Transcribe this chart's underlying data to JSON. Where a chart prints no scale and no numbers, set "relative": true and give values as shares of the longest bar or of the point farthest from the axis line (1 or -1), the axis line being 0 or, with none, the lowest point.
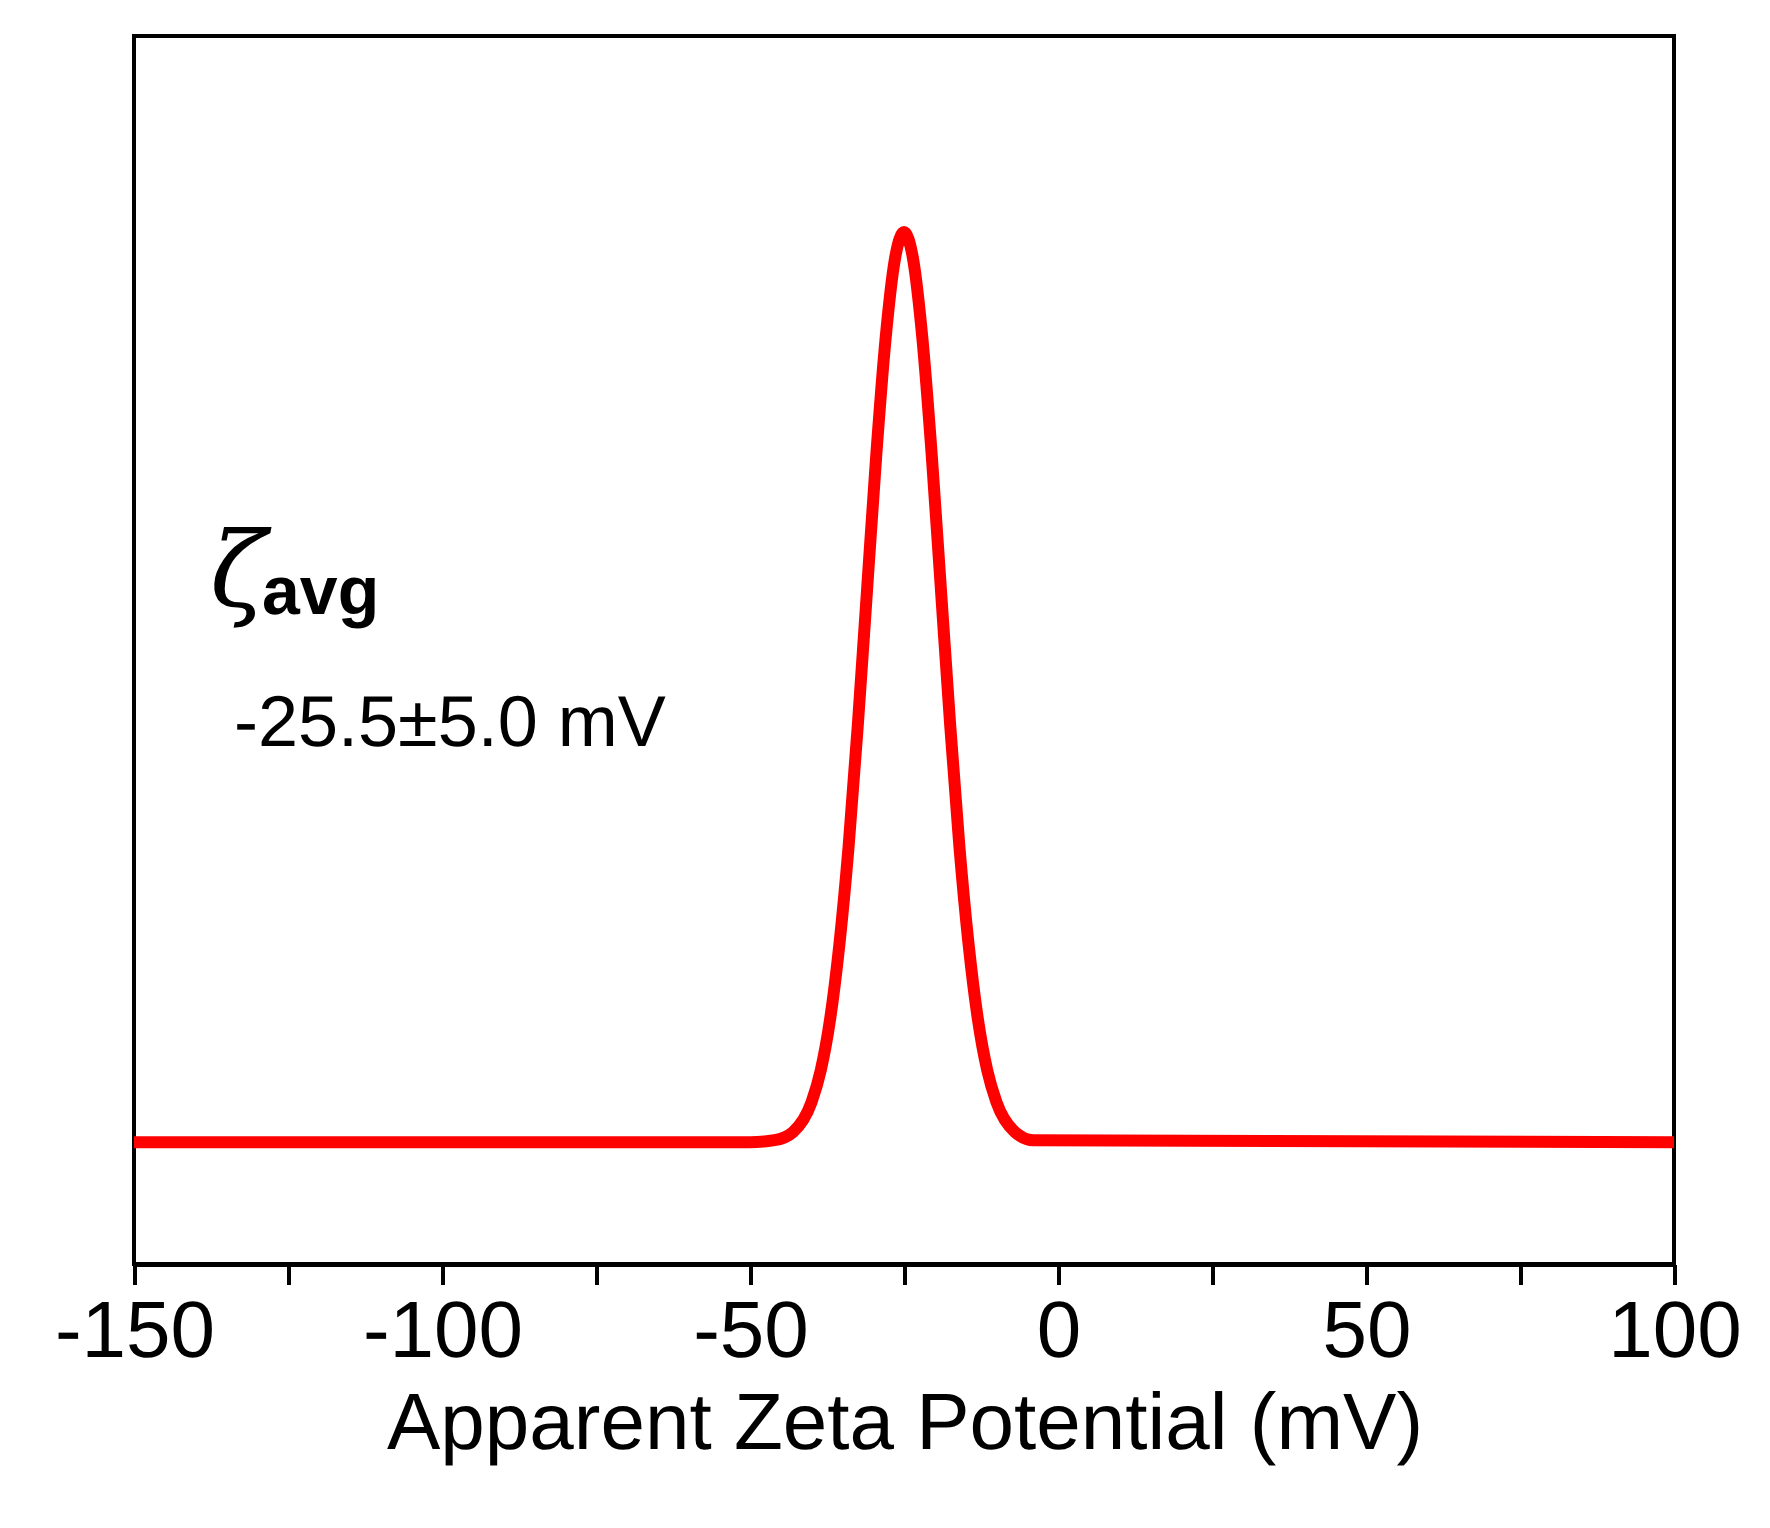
{
  "chart_data": {
    "type": "line",
    "relative": true,
    "xlabel": "Apparent Zeta Potential (mV)",
    "xlim": [
      -150,
      100
    ],
    "xticks": [
      -150,
      {
        "value": -125,
        "label": null
      },
      -100,
      {
        "value": -75,
        "label": null
      },
      -50,
      {
        "value": -25,
        "label": null
      },
      0,
      {
        "value": 25,
        "label": null
      },
      50,
      {
        "value": 75,
        "label": null
      },
      100
    ],
    "grid": false,
    "marker": "none",
    "line_style": "solid",
    "annotations": [
      "ζ$_{avg}$",
      "-25.5±5.0 mV"
    ],
    "series": [
      {
        "color": "#ff0000",
        "x": [
          -150,
          -50,
          -46,
          -43,
          -40,
          -38.5,
          -37,
          -35.5,
          -34,
          -32.5,
          -31,
          -29.5,
          -28,
          -26.5,
          -25,
          -23.5,
          -22,
          -20.5,
          -19,
          -17.5,
          -16,
          -14.5,
          -13,
          -11.5,
          -10,
          -7,
          -4,
          100
        ],
        "values": [
          0.118,
          0.118,
          0.12,
          0.128,
          0.157,
          0.188,
          0.237,
          0.309,
          0.404,
          0.522,
          0.653,
          0.784,
          0.896,
          0.973,
          1,
          0.973,
          0.896,
          0.784,
          0.653,
          0.522,
          0.404,
          0.309,
          0.237,
          0.188,
          0.157,
          0.128,
          0.12,
          0.118
        ]
      }
    ]
  }
}
